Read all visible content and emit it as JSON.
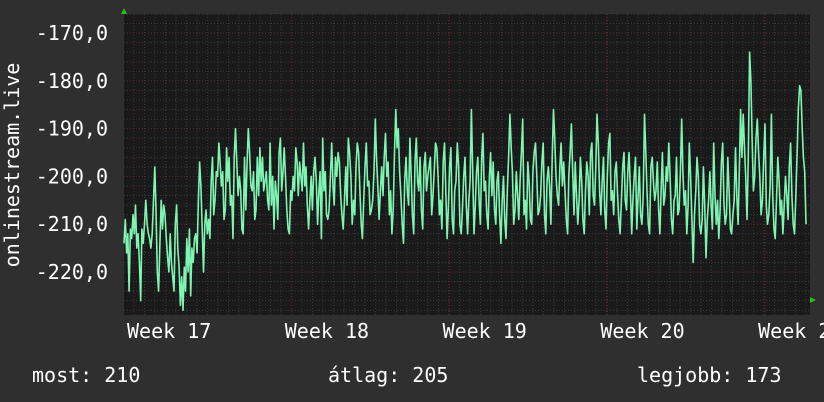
{
  "colors": {
    "background": "#2f2f2f",
    "plot_background": "#1a1a1a",
    "grid_minor": "#3a3a3a",
    "grid_major": "#5a2626",
    "line": "#7ff5b4",
    "axis_arrow": "#20c020",
    "text": "#ffffff"
  },
  "chart_data": {
    "type": "line",
    "ylabel": "onlinestream.live",
    "ylim": [
      -229,
      -166
    ],
    "y_ticks": [
      -170,
      -180,
      -190,
      -200,
      -210,
      -220
    ],
    "y_tick_labels": [
      "-170,0",
      "-180,0",
      "-190,0",
      "-200,0",
      "-210,0",
      "-220,0"
    ],
    "x_ticks": [
      {
        "label": "Week 17",
        "t": 0.0
      },
      {
        "label": "Week 18",
        "t": 0.23
      },
      {
        "label": "Week 19",
        "t": 0.46
      },
      {
        "label": "Week 20",
        "t": 0.69
      },
      {
        "label": "Week 2",
        "t": 0.92
      }
    ],
    "grid": true,
    "series": [
      {
        "values": [
          -214,
          -209,
          -216,
          -212,
          -224,
          -211,
          -213,
          -208,
          -212,
          -206,
          -215,
          -212,
          -218,
          -226,
          -211,
          -214,
          -210,
          -205,
          -210,
          -212,
          -213,
          -215,
          -212,
          -205,
          -198,
          -207,
          -220,
          -224,
          -214,
          -205,
          -211,
          -206,
          -208,
          -213,
          -217,
          -220,
          -212,
          -218,
          -221,
          -224,
          -210,
          -206,
          -215,
          -219,
          -227,
          -221,
          -228,
          -219,
          -224,
          -213,
          -220,
          -211,
          -225,
          -215,
          -218,
          -213,
          -212,
          -216,
          -205,
          -197,
          -202,
          -211,
          -220,
          -210,
          -207,
          -212,
          -209,
          -213,
          -201,
          -196,
          -208,
          -205,
          -199,
          -200,
          -193,
          -197,
          -202,
          -199,
          -209,
          -207,
          -194,
          -201,
          -196,
          -206,
          -204,
          -213,
          -196,
          -190,
          -197,
          -204,
          -200,
          -203,
          -211,
          -212,
          -196,
          -207,
          -197,
          -190,
          -195,
          -202,
          -203,
          -199,
          -209,
          -207,
          -196,
          -204,
          -194,
          -201,
          -196,
          -203,
          -201,
          -199,
          -205,
          -207,
          -193,
          -206,
          -200,
          -211,
          -201,
          -204,
          -209,
          -195,
          -192,
          -203,
          -199,
          -194,
          -200,
          -207,
          -211,
          -212,
          -203,
          -205,
          -200,
          -203,
          -194,
          -197,
          -204,
          -197,
          -200,
          -203,
          -193,
          -202,
          -198,
          -206,
          -211,
          -205,
          -200,
          -207,
          -199,
          -196,
          -201,
          -210,
          -203,
          -199,
          -213,
          -192,
          -203,
          -199,
          -208,
          -209,
          -207,
          -200,
          -193,
          -202,
          -206,
          -196,
          -200,
          -195,
          -197,
          -204,
          -208,
          -211,
          -205,
          -198,
          -206,
          -192,
          -195,
          -200,
          -210,
          -205,
          -208,
          -198,
          -193,
          -195,
          -203,
          -210,
          -213,
          -205,
          -198,
          -193,
          -202,
          -201,
          -208,
          -207,
          -205,
          -199,
          -188,
          -196,
          -202,
          -209,
          -203,
          -198,
          -204,
          -196,
          -191,
          -200,
          -197,
          -208,
          -203,
          -212,
          -207,
          -195,
          -186,
          -194,
          -190,
          -199,
          -204,
          -210,
          -214,
          -201,
          -196,
          -203,
          -206,
          -192,
          -200,
          -208,
          -212,
          -197,
          -192,
          -201,
          -203,
          -196,
          -207,
          -211,
          -198,
          -195,
          -203,
          -200,
          -198,
          -196,
          -208,
          -204,
          -199,
          -193,
          -194,
          -200,
          -208,
          -205,
          -211,
          -197,
          -193,
          -203,
          -213,
          -207,
          -198,
          -194,
          -209,
          -212,
          -203,
          -201,
          -193,
          -198,
          -210,
          -212,
          -207,
          -200,
          -196,
          -206,
          -212,
          -205,
          -201,
          -186,
          -199,
          -212,
          -206,
          -199,
          -196,
          -205,
          -210,
          -196,
          -191,
          -203,
          -201,
          -208,
          -211,
          -200,
          -195,
          -204,
          -197,
          -207,
          -210,
          -201,
          -199,
          -208,
          -214,
          -205,
          -200,
          -209,
          -213,
          -203,
          -196,
          -187,
          -194,
          -199,
          -210,
          -207,
          -199,
          -204,
          -209,
          -201,
          -195,
          -188,
          -208,
          -205,
          -211,
          -197,
          -201,
          -209,
          -210,
          -199,
          -195,
          -193,
          -200,
          -208,
          -207,
          -204,
          -197,
          -193,
          -208,
          -212,
          -201,
          -198,
          -202,
          -210,
          -196,
          -186,
          -192,
          -200,
          -204,
          -206,
          -198,
          -193,
          -202,
          -197,
          -203,
          -209,
          -212,
          -200,
          -195,
          -189,
          -199,
          -208,
          -197,
          -204,
          -210,
          -205,
          -196,
          -201,
          -209,
          -212,
          -203,
          -197,
          -200,
          -208,
          -195,
          -193,
          -204,
          -206,
          -198,
          -187,
          -193,
          -203,
          -208,
          -201,
          -196,
          -207,
          -211,
          -200,
          -193,
          -191,
          -205,
          -203,
          -208,
          -199,
          -197,
          -204,
          -209,
          -212,
          -205,
          -198,
          -195,
          -205,
          -207,
          -199,
          -195,
          -203,
          -212,
          -205,
          -200,
          -196,
          -211,
          -204,
          -198,
          -208,
          -210,
          -204,
          -187,
          -195,
          -203,
          -210,
          -212,
          -198,
          -196,
          -201,
          -205,
          -203,
          -197,
          -207,
          -212,
          -203,
          -195,
          -206,
          -204,
          -198,
          -201,
          -193,
          -200,
          -209,
          -212,
          -205,
          -204,
          -196,
          -208,
          -207,
          -199,
          -188,
          -199,
          -206,
          -203,
          -212,
          -206,
          -193,
          -200,
          -209,
          -218,
          -208,
          -203,
          -196,
          -200,
          -210,
          -212,
          -209,
          -198,
          -206,
          -217,
          -209,
          -205,
          -199,
          -206,
          -211,
          -193,
          -204,
          -210,
          -205,
          -213,
          -207,
          -197,
          -193,
          -206,
          -210,
          -208,
          -196,
          -203,
          -211,
          -212,
          -208,
          -205,
          -194,
          -204,
          -210,
          -199,
          -186,
          -196,
          -187,
          -194,
          -200,
          -209,
          -196,
          -174,
          -180,
          -193,
          -203,
          -200,
          -192,
          -188,
          -195,
          -200,
          -208,
          -205,
          -196,
          -189,
          -206,
          -210,
          -208,
          -202,
          -187,
          -204,
          -211,
          -213,
          -205,
          -196,
          -201,
          -208,
          -205,
          -212,
          -206,
          -200,
          -204,
          -209,
          -198,
          -193,
          -204,
          -210,
          -212,
          -205,
          -196,
          -186,
          -181,
          -182,
          -190,
          -196,
          -199,
          -210
        ]
      }
    ]
  },
  "footer": {
    "current": "most: 210",
    "average": "átlag: 205",
    "best": "legjobb: 173"
  }
}
